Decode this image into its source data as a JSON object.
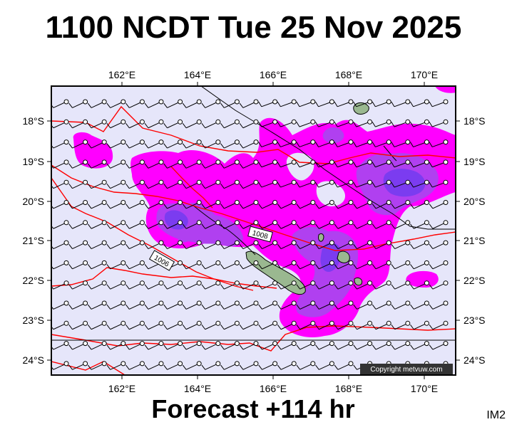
{
  "title": "1100 NCDT Tue 25 Nov 2025",
  "footer": "Forecast +114 hr",
  "image_tag": "IM2",
  "copyright": "Copyright metvuw.com",
  "map": {
    "lon_labels": [
      "162°E",
      "164°E",
      "166°E",
      "168°E",
      "170°E"
    ],
    "lat_labels": [
      "18°S",
      "19°S",
      "20°S",
      "21°S",
      "22°S",
      "23°S",
      "24°S"
    ],
    "isobar_labels": [
      "1006",
      "1008"
    ],
    "colors": {
      "background": "#e6e6fa",
      "rain_light": "#ff00ff",
      "rain_medium": "#b040f0",
      "rain_heavy": "#7b3cf0",
      "isobar": "#ff0000",
      "land": "#9ab890"
    }
  }
}
